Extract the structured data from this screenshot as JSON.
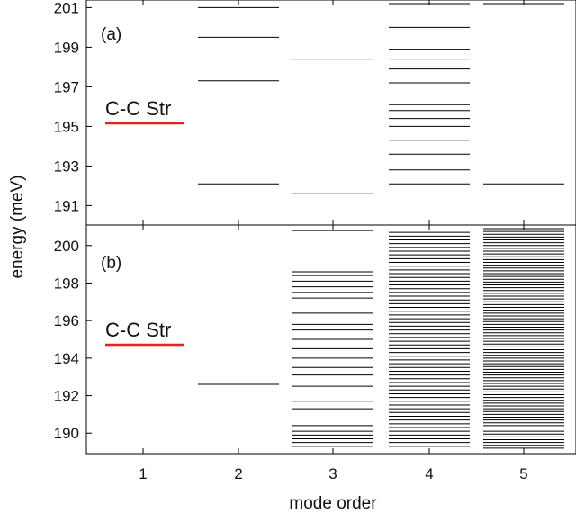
{
  "chart_data": [
    {
      "type": "eventplot",
      "panel_label": "(a)",
      "annotation": "C-C Str",
      "annotation_underline_color": "#e0241b",
      "line_color": "#000000",
      "xlabel": "mode order",
      "ylabel": "energy (meV)",
      "categories": [
        "1",
        "2",
        "3",
        "4",
        "5"
      ],
      "ylim": [
        190.2,
        201.2
      ],
      "yticks": [
        191,
        193,
        195,
        197,
        199,
        201
      ],
      "grid": false,
      "lines": [
        {
          "category": "1",
          "energies": []
        },
        {
          "category": "2",
          "energies": [
            192.1,
            197.3,
            199.5,
            201.0
          ]
        },
        {
          "category": "3",
          "energies": [
            191.6,
            198.4
          ]
        },
        {
          "category": "4",
          "energies": [
            192.1,
            192.8,
            193.6,
            194.3,
            195.0,
            195.4,
            195.8,
            196.1,
            197.2,
            197.9,
            198.4,
            198.9,
            200.0,
            201.2
          ]
        },
        {
          "category": "5",
          "energies": [
            192.1,
            201.2
          ]
        }
      ]
    },
    {
      "type": "eventplot",
      "panel_label": "(b)",
      "annotation": "C-C Str",
      "annotation_underline_color": "#e0241b",
      "line_color": "#000000",
      "xlabel": "mode order",
      "ylabel": "energy (meV)",
      "categories": [
        "1",
        "2",
        "3",
        "4",
        "5"
      ],
      "ylim": [
        189.1,
        200.9
      ],
      "yticks": [
        190,
        192,
        194,
        196,
        198,
        200
      ],
      "grid": false,
      "lines": [
        {
          "category": "1",
          "energies": []
        },
        {
          "category": "2",
          "energies": [
            192.6
          ]
        },
        {
          "category": "3",
          "energies": [
            189.3,
            189.5,
            189.7,
            189.9,
            190.1,
            190.4,
            191.3,
            191.7,
            192.5,
            193.1,
            193.5,
            194.0,
            194.5,
            195.0,
            195.5,
            195.8,
            196.4,
            197.2,
            197.5,
            197.8,
            198.1,
            198.4,
            198.6,
            200.8
          ]
        },
        {
          "category": "4",
          "energies": [
            189.3,
            189.5,
            189.7,
            189.9,
            190.1,
            190.3,
            190.5,
            190.7,
            190.9,
            191.1,
            191.3,
            191.5,
            191.7,
            191.9,
            192.1,
            192.3,
            192.5,
            192.7,
            192.9,
            193.1,
            193.3,
            193.5,
            193.7,
            193.9,
            194.1,
            194.3,
            194.5,
            194.7,
            194.9,
            195.1,
            195.3,
            195.5,
            195.7,
            195.9,
            196.1,
            196.3,
            196.5,
            196.7,
            196.9,
            197.1,
            197.3,
            197.5,
            197.7,
            197.9,
            198.1,
            198.3,
            198.5,
            198.7,
            198.9,
            199.1,
            199.3,
            199.5,
            199.7,
            199.9,
            200.1,
            200.3,
            200.5,
            200.7
          ]
        },
        {
          "category": "5",
          "energies": [
            189.2,
            189.35,
            189.5,
            189.65,
            189.8,
            189.95,
            190.1,
            190.4,
            190.55,
            190.7,
            190.85,
            191.0,
            191.15,
            191.3,
            191.45,
            191.6,
            191.75,
            191.9,
            192.05,
            192.2,
            192.35,
            192.5,
            192.65,
            192.8,
            192.95,
            193.1,
            193.25,
            193.4,
            193.55,
            193.7,
            193.85,
            194.0,
            194.15,
            194.3,
            194.45,
            194.6,
            194.75,
            194.9,
            195.05,
            195.2,
            195.35,
            195.5,
            195.65,
            195.8,
            195.95,
            196.1,
            196.25,
            196.4,
            196.55,
            196.7,
            196.85,
            197.0,
            197.15,
            197.3,
            197.45,
            197.6,
            197.75,
            197.9,
            198.05,
            198.2,
            198.35,
            198.5,
            198.65,
            198.8,
            198.95,
            199.1,
            199.25,
            199.4,
            199.55,
            199.7,
            199.85,
            200.0,
            200.15,
            200.3,
            200.45,
            200.6,
            200.75,
            200.9
          ]
        }
      ]
    }
  ]
}
